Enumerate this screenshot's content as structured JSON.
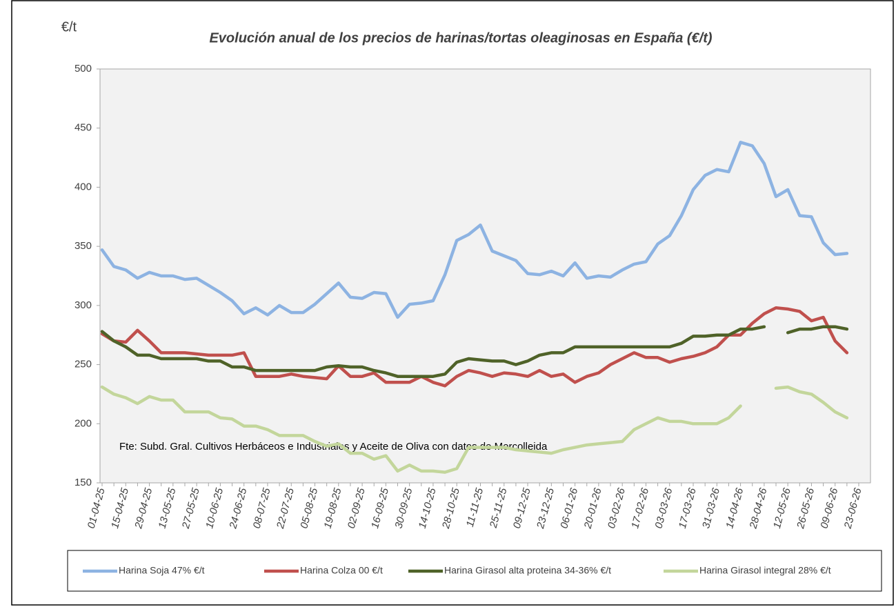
{
  "chart_data": {
    "type": "line",
    "title": "Evolución anual de los precios de harinas/tortas oleaginosas en España (€/t)",
    "y_label": "€/t",
    "annotation": "Fte: Subd. Gral. Cultivos Herbáceos e Industriales y Aceite de Oliva con datos de Mercolleida",
    "categories": [
      "01-04-25",
      null,
      "15-04-25",
      null,
      "29-04-25",
      null,
      "13-05-25",
      null,
      "27-05-25",
      null,
      "10-06-25",
      null,
      "24-06-25",
      null,
      "08-07-25",
      null,
      "22-07-25",
      null,
      "05-08-25",
      null,
      "19-08-25",
      null,
      "02-09-25",
      null,
      "16-09-25",
      null,
      "30-09-25",
      null,
      "14-10-25",
      null,
      "28-10-25",
      null,
      "11-11-25",
      null,
      "25-11-25",
      null,
      "09-12-25",
      null,
      "23-12-25",
      null,
      "06-01-26",
      null,
      "20-01-26",
      null,
      "03-02-26",
      null,
      "17-02-26",
      null,
      "03-03-26",
      null,
      "17-03-26",
      null,
      "31-03-26",
      null,
      "14-04-26",
      null,
      "28-04-26",
      null,
      "12-05-26",
      null,
      "26-05-26",
      null,
      "09-06-26",
      null,
      "23-06-26"
    ],
    "series": [
      {
        "name": "Harina Soja  47% €/t",
        "color": "#8db3e2",
        "values": [
          347,
          333,
          330,
          323,
          328,
          325,
          325,
          322,
          323,
          317,
          311,
          304,
          293,
          298,
          292,
          300,
          294,
          294,
          301,
          310,
          319,
          307,
          306,
          311,
          310,
          290,
          301,
          302,
          304,
          326,
          355,
          360,
          368,
          346,
          342,
          338,
          327,
          326,
          329,
          325,
          336,
          323,
          325,
          324,
          330,
          335,
          337,
          352,
          359,
          376,
          398,
          410,
          415,
          413,
          438,
          435,
          420,
          392,
          398,
          376,
          375,
          353,
          343,
          344,
          null
        ]
      },
      {
        "name": "Harina Colza 00 €/t",
        "color": "#c0504d",
        "values": [
          276,
          270,
          269,
          279,
          270,
          260,
          260,
          260,
          259,
          258,
          258,
          258,
          260,
          240,
          240,
          240,
          242,
          240,
          239,
          238,
          249,
          240,
          240,
          243,
          235,
          235,
          235,
          240,
          235,
          232,
          240,
          245,
          243,
          240,
          243,
          242,
          240,
          245,
          240,
          242,
          235,
          240,
          243,
          250,
          255,
          260,
          256,
          256,
          252,
          255,
          257,
          260,
          265,
          275,
          275,
          285,
          293,
          298,
          297,
          295,
          287,
          290,
          270,
          260,
          null
        ]
      },
      {
        "name": "Harina Girasol alta proteina 34-36% €/t",
        "color": "#4f6228",
        "values": [
          278,
          270,
          265,
          258,
          258,
          255,
          255,
          255,
          255,
          253,
          253,
          248,
          248,
          245,
          245,
          245,
          245,
          245,
          245,
          248,
          249,
          248,
          248,
          245,
          243,
          240,
          240,
          240,
          240,
          242,
          252,
          255,
          254,
          253,
          253,
          250,
          253,
          258,
          260,
          260,
          265,
          265,
          265,
          265,
          265,
          265,
          265,
          265,
          265,
          268,
          274,
          274,
          275,
          275,
          280,
          280,
          282,
          null,
          277,
          280,
          280,
          282,
          282,
          280,
          null
        ]
      },
      {
        "name": "Harina Girasol integral 28% €/t",
        "color": "#c3d69b",
        "values": [
          231,
          225,
          222,
          217,
          223,
          220,
          220,
          210,
          210,
          210,
          205,
          204,
          198,
          198,
          195,
          190,
          190,
          190,
          185,
          181,
          183,
          175,
          175,
          170,
          173,
          160,
          165,
          160,
          160,
          159,
          162,
          180,
          180,
          180,
          180,
          178,
          177,
          176,
          175,
          178,
          180,
          182,
          183,
          184,
          185,
          195,
          200,
          205,
          202,
          202,
          200,
          200,
          200,
          205,
          215,
          null,
          null,
          230,
          231,
          227,
          225,
          218,
          210,
          205,
          null
        ]
      }
    ],
    "ylim": [
      150,
      500
    ],
    "yticks": [
      150,
      200,
      250,
      300,
      350,
      400,
      450,
      500
    ],
    "grid": false,
    "legend": "bottom"
  }
}
